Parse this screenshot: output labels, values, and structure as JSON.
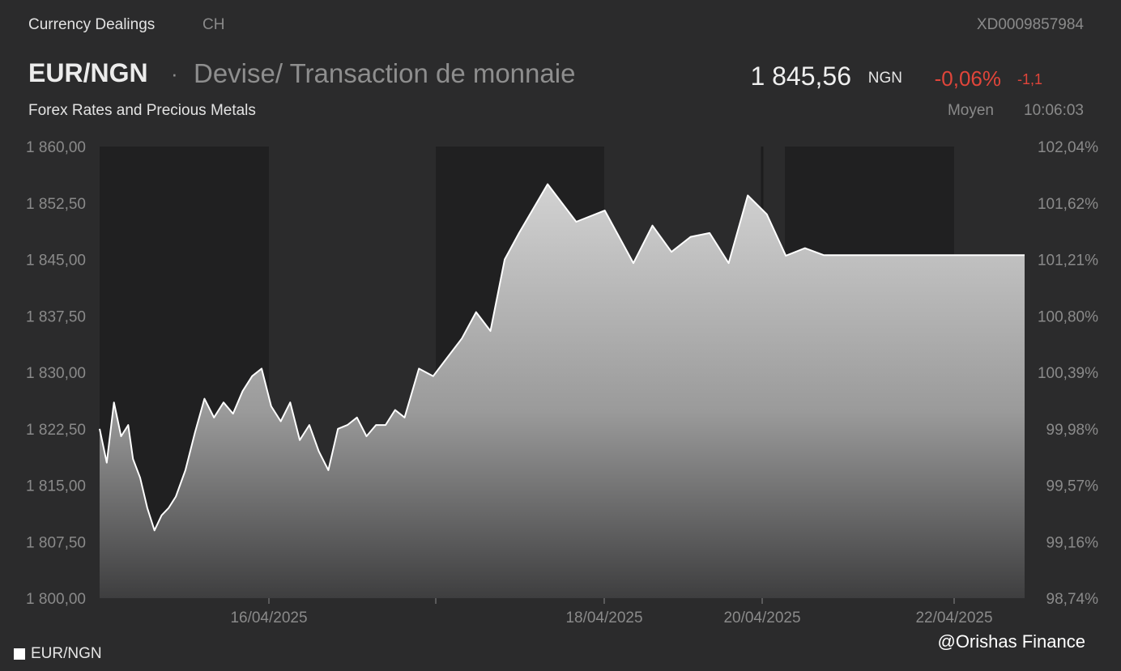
{
  "header": {
    "section": "Currency Dealings",
    "country": "CH",
    "isin": "XD0009857984",
    "pair": "EUR/NGN",
    "separator": "·",
    "product_type": "Devise/ Transaction de monnaie",
    "subtitle": "Forex Rates and Precious Metals",
    "price": "1 845,56",
    "currency": "NGN",
    "change_pct": "-0,06%",
    "change_abs": "-1,1",
    "price_type": "Moyen",
    "time": "10:06:03"
  },
  "legend": {
    "label": "EUR/NGN"
  },
  "watermark": "@Orishas Finance",
  "colors": {
    "background": "#2b2b2c",
    "shaded_band": "#202021",
    "line": "#ffffff",
    "negative": "#e0453a",
    "muted_text": "#8a8a8a"
  },
  "chart_data": {
    "type": "area",
    "series": [
      {
        "name": "EUR/NGN",
        "x": [
          "15/04/2025 08:00",
          "15/04/2025 09:30",
          "15/04/2025 11:00",
          "15/04/2025 12:30",
          "15/04/2025 14:00",
          "15/04/2025 15:00",
          "15/04/2025 16:30",
          "15/04/2025 18:00",
          "15/04/2025 19:30",
          "15/04/2025 21:00",
          "15/04/2025 22:30",
          "16/04/2025 00:00",
          "16/04/2025 02:00",
          "16/04/2025 04:00",
          "16/04/2025 06:00",
          "16/04/2025 08:00",
          "16/04/2025 10:00",
          "16/04/2025 12:00",
          "16/04/2025 14:00",
          "16/04/2025 16:00",
          "16/04/2025 18:00",
          "16/04/2025 20:00",
          "16/04/2025 22:00",
          "17/04/2025 00:00",
          "17/04/2025 02:00",
          "17/04/2025 04:00",
          "17/04/2025 06:00",
          "17/04/2025 08:00",
          "17/04/2025 10:00",
          "17/04/2025 12:00",
          "17/04/2025 14:00",
          "17/04/2025 16:00",
          "17/04/2025 18:00",
          "17/04/2025 20:00",
          "17/04/2025 22:00",
          "18/04/2025 00:00",
          "18/04/2025 03:00",
          "18/04/2025 06:00",
          "18/04/2025 09:00",
          "18/04/2025 12:00",
          "18/04/2025 15:00",
          "18/04/2025 18:00",
          "18/04/2025 21:00",
          "19/04/2025 00:00",
          "19/04/2025 06:00",
          "19/04/2025 12:00",
          "19/04/2025 18:00",
          "20/04/2025 00:00",
          "20/04/2025 04:00",
          "20/04/2025 08:00",
          "20/04/2025 12:00",
          "20/04/2025 16:00",
          "20/04/2025 20:00",
          "21/04/2025 00:00",
          "21/04/2025 04:00",
          "21/04/2025 08:00",
          "21/04/2025 12:00",
          "21/04/2025 16:00",
          "21/04/2025 20:00",
          "22/04/2025 00:00",
          "22/04/2025 04:00",
          "22/04/2025 08:00",
          "22/04/2025 12:00",
          "22/04/2025 16:00",
          "22/04/2025 20:00",
          "23/04/2025 00:00",
          "23/04/2025 04:00",
          "23/04/2025 08:00",
          "23/04/2025 10:06"
        ],
        "values": [
          1822.5,
          1818.0,
          1826.0,
          1821.5,
          1823.0,
          1818.5,
          1816.0,
          1812.0,
          1809.0,
          1811.0,
          1812.0,
          1813.5,
          1817.0,
          1822.0,
          1826.5,
          1824.0,
          1826.0,
          1824.5,
          1827.5,
          1829.5,
          1830.5,
          1825.5,
          1823.5,
          1826.0,
          1821.0,
          1823.0,
          1819.5,
          1817.0,
          1822.5,
          1823.0,
          1824.0,
          1821.5,
          1823.0,
          1823.0,
          1825.0,
          1824.0,
          1830.5,
          1829.5,
          1832.0,
          1834.5,
          1838.0,
          1835.5,
          1845.0,
          1848.5,
          1855.0,
          1850.0,
          1851.5,
          1844.5,
          1849.5,
          1846.0,
          1848.0,
          1848.5,
          1844.5,
          1853.5,
          1851.0,
          1845.5,
          1846.5,
          1845.56,
          1845.56,
          1845.56,
          1845.56,
          1845.56,
          1845.56,
          1845.56,
          1845.56,
          1845.56,
          1845.56,
          1845.56,
          1845.56
        ]
      }
    ],
    "y_left_ticks": [
      "1 860,00",
      "1 852,50",
      "1 845,00",
      "1 837,50",
      "1 830,00",
      "1 822,50",
      "1 815,00",
      "1 807,50",
      "1 800,00"
    ],
    "y_right_ticks": [
      "102,04%",
      "101,62%",
      "101,21%",
      "100,80%",
      "100,39%",
      "99,98%",
      "99,57%",
      "99,16%",
      "98,74%"
    ],
    "x_tick_labels": [
      "16/04/2025",
      "18/04/2025",
      "20/04/2025",
      "22/04/2025"
    ],
    "ylim": [
      1800,
      1860
    ],
    "grid": false,
    "legend_position": "bottom-left",
    "title": "",
    "xlabel": "",
    "ylabel": ""
  }
}
